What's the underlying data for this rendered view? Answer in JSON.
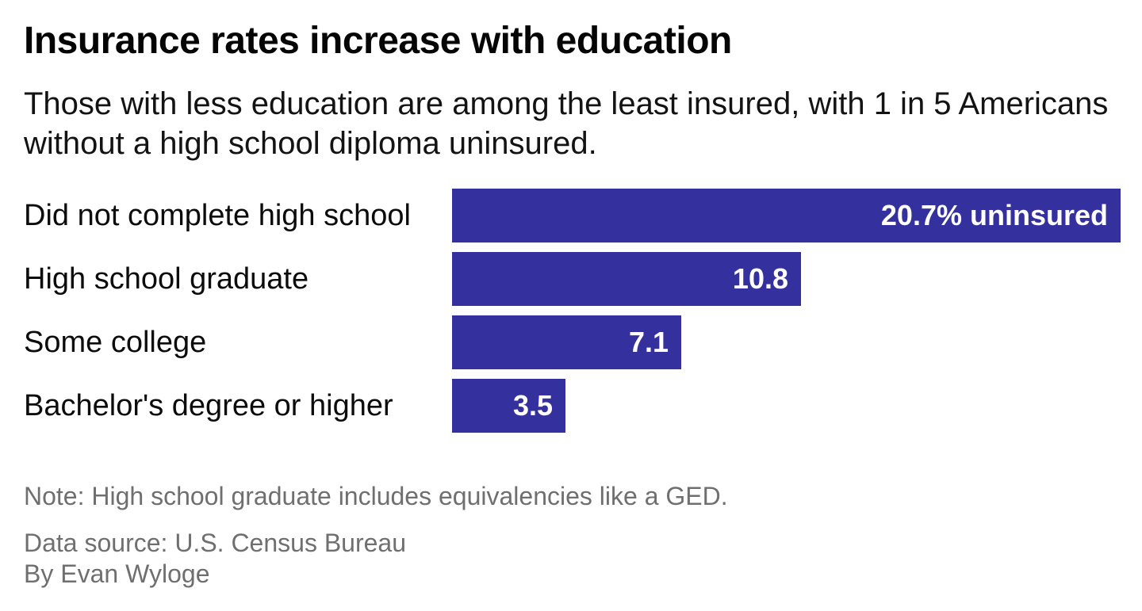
{
  "header": {
    "title": "Insurance rates increase with education",
    "subtitle": "Those with less education are among the least insured, with 1 in 5 Americans without a high school diploma uninsured."
  },
  "footer": {
    "note": "Note: High school graduate includes equivalencies like a GED.",
    "source": "Data source: U.S. Census Bureau",
    "byline": "By Evan Wyloge"
  },
  "colors": {
    "bar": "#34319e",
    "value_text": "#ffffff",
    "muted_text": "#6f6f6f"
  },
  "chart_data": {
    "type": "bar",
    "orientation": "horizontal",
    "title": "Insurance rates increase with education",
    "categories": [
      "Did not complete high school",
      "High school graduate",
      "Some college",
      "Bachelor's degree or higher"
    ],
    "values": [
      20.7,
      10.8,
      7.1,
      3.5
    ],
    "value_labels": [
      "20.7% uninsured",
      "10.8",
      "7.1",
      "3.5"
    ],
    "unit": "% uninsured",
    "xlim": [
      0,
      20.7
    ],
    "grid": false,
    "legend": false
  }
}
